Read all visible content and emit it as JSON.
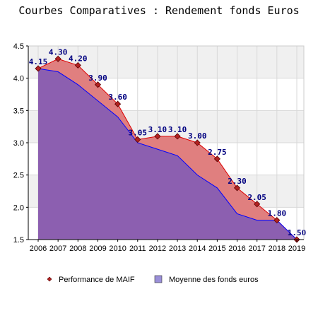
{
  "chart_data": {
    "type": "area",
    "title": "Courbes Comparatives : Rendement fonds Euros",
    "x": [
      "2006",
      "2007",
      "2008",
      "2009",
      "2010",
      "2011",
      "2012",
      "2013",
      "2014",
      "2015",
      "2016",
      "2017",
      "2018",
      "2019"
    ],
    "ylim": [
      1.5,
      4.5
    ],
    "yticks": [
      "1.5",
      "2.0",
      "2.5",
      "3.0",
      "3.5",
      "4.0",
      "4.5"
    ],
    "grid": true,
    "legend_position": "bottom",
    "series": [
      {
        "name": "Performance de MAIF",
        "values": [
          4.15,
          4.3,
          4.2,
          3.9,
          3.6,
          3.05,
          3.1,
          3.1,
          3.0,
          2.75,
          2.3,
          2.05,
          1.8,
          1.5
        ],
        "labels": [
          "4.15",
          "4.30",
          "4.20",
          "3.90",
          "3.60",
          "3.05",
          "3.10",
          "3.10",
          "3.00",
          "2.75",
          "2.30",
          "2.05",
          "1.80",
          "1.50"
        ],
        "color": "#dd0000",
        "fill": "#e07f7f",
        "marker_color": "#b22222"
      },
      {
        "name": "Moyenne des fonds euros",
        "values": [
          4.15,
          4.1,
          3.9,
          3.65,
          3.4,
          3.0,
          2.9,
          2.8,
          2.5,
          2.3,
          1.9,
          1.8,
          1.8,
          1.5
        ],
        "color": "#0000ff",
        "fill": "#8c5fb0"
      }
    ]
  }
}
